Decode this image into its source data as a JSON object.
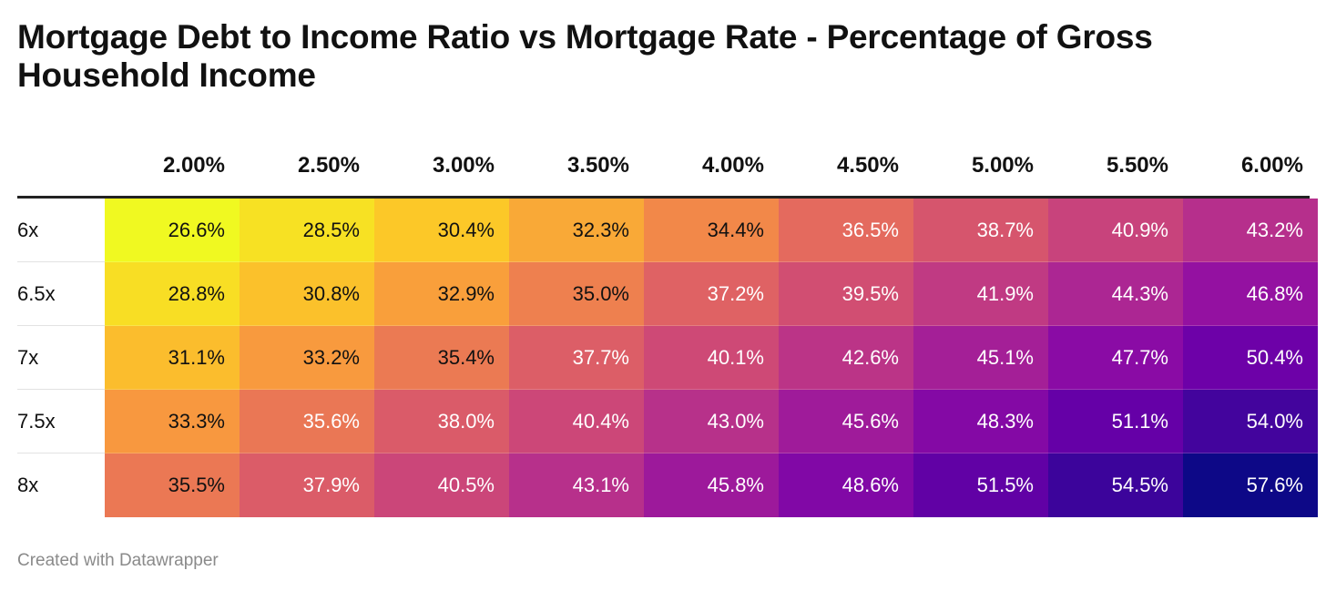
{
  "chart_data": {
    "type": "heatmap",
    "title": "Mortgage Debt to Income Ratio vs Mortgage Rate - Percentage of Gross Household Income",
    "columns": [
      "2.00%",
      "2.50%",
      "3.00%",
      "3.50%",
      "4.00%",
      "4.50%",
      "5.00%",
      "5.50%",
      "6.00%"
    ],
    "rows": [
      "6x",
      "6.5x",
      "7x",
      "7.5x",
      "8x"
    ],
    "values": [
      [
        26.6,
        28.5,
        30.4,
        32.3,
        34.4,
        36.5,
        38.7,
        40.9,
        43.2
      ],
      [
        28.8,
        30.8,
        32.9,
        35.0,
        37.2,
        39.5,
        41.9,
        44.3,
        46.8
      ],
      [
        31.1,
        33.2,
        35.4,
        37.7,
        40.1,
        42.6,
        45.1,
        47.7,
        50.4
      ],
      [
        33.3,
        35.6,
        38.0,
        40.4,
        43.0,
        45.6,
        48.3,
        51.1,
        54.0
      ],
      [
        35.5,
        37.9,
        40.5,
        43.1,
        45.8,
        48.6,
        51.5,
        54.5,
        57.6
      ]
    ],
    "value_labels": [
      [
        "26.6%",
        "28.5%",
        "30.4%",
        "32.3%",
        "34.4%",
        "36.5%",
        "38.7%",
        "40.9%",
        "43.2%"
      ],
      [
        "28.8%",
        "30.8%",
        "32.9%",
        "35.0%",
        "37.2%",
        "39.5%",
        "41.9%",
        "44.3%",
        "46.8%"
      ],
      [
        "31.1%",
        "33.2%",
        "35.4%",
        "37.7%",
        "40.1%",
        "42.6%",
        "45.1%",
        "47.7%",
        "50.4%"
      ],
      [
        "33.3%",
        "35.6%",
        "38.0%",
        "40.4%",
        "43.0%",
        "45.6%",
        "48.3%",
        "51.1%",
        "54.0%"
      ],
      [
        "35.5%",
        "37.9%",
        "40.5%",
        "43.1%",
        "45.8%",
        "48.6%",
        "51.5%",
        "54.5%",
        "57.6%"
      ]
    ],
    "color_scale": {
      "name": "plasma",
      "min": 26.6,
      "max": 57.6,
      "stops": [
        "#f0f921",
        "#fcce25",
        "#f89540",
        "#e16462",
        "#cc4778",
        "#b12a90",
        "#8f0da4",
        "#6a00a8",
        "#41049d",
        "#0d0887"
      ]
    }
  },
  "footer": {
    "credit": "Created with Datawrapper"
  }
}
